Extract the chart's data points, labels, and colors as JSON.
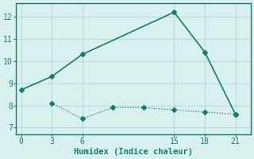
{
  "xlabel": "Humidex (Indice chaleur)",
  "line1_x": [
    0,
    3,
    6,
    15,
    18,
    21
  ],
  "line1_y": [
    8.7,
    9.3,
    10.3,
    12.2,
    10.4,
    7.6
  ],
  "line2_x": [
    3,
    6,
    9,
    12,
    15,
    18,
    21
  ],
  "line2_y": [
    8.1,
    7.4,
    7.9,
    7.9,
    7.8,
    7.7,
    7.6
  ],
  "line_color": "#1a7a6e",
  "bg_color": "#d8f0ee",
  "grid_color": "#b8dcd8",
  "xlim": [
    -0.5,
    22.5
  ],
  "ylim": [
    6.7,
    12.6
  ],
  "xticks": [
    0,
    3,
    6,
    15,
    18,
    21
  ],
  "yticks": [
    7,
    8,
    9,
    10,
    11,
    12
  ],
  "markersize": 3.0
}
